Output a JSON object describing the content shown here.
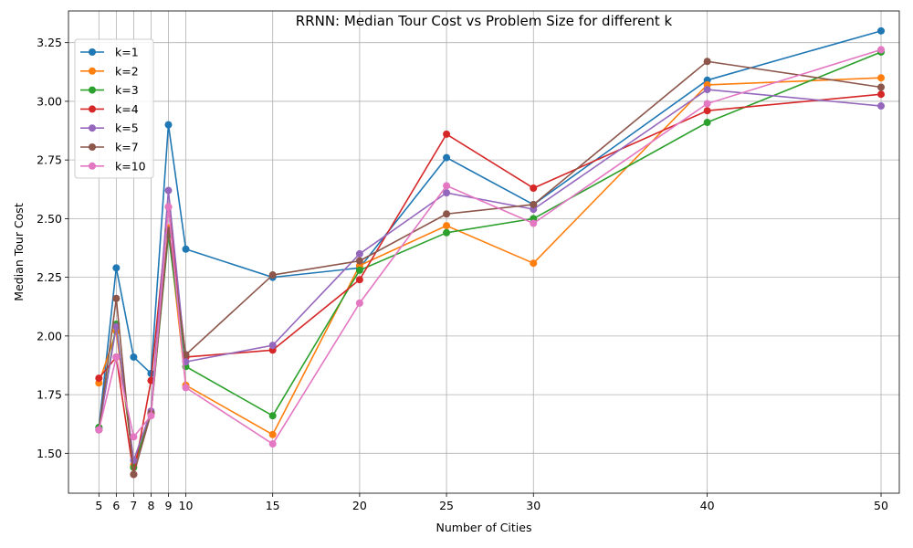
{
  "chart_data": {
    "type": "line",
    "title": "RRNN: Median Tour Cost vs Problem Size for different k",
    "xlabel": "Number of Cities",
    "ylabel": "Median Tour Cost",
    "x": [
      5,
      6,
      7,
      8,
      9,
      10,
      15,
      20,
      25,
      30,
      40,
      50
    ],
    "xticks": [
      5,
      6,
      7,
      8,
      9,
      10,
      15,
      20,
      25,
      30,
      40,
      50
    ],
    "yticks": [
      1.5,
      1.75,
      2.0,
      2.25,
      2.5,
      2.75,
      3.0,
      3.25
    ],
    "ytick_labels": [
      "1.50",
      "1.75",
      "2.00",
      "2.25",
      "2.50",
      "2.75",
      "3.00",
      "3.25"
    ],
    "xlim": [
      3.25,
      51.05
    ],
    "ylim": [
      1.33,
      3.385
    ],
    "grid": true,
    "legend_position": "top-left",
    "series": [
      {
        "name": "k=1",
        "color": "#1f77b4",
        "values": [
          1.61,
          2.29,
          1.91,
          1.84,
          2.9,
          2.37,
          2.25,
          2.29,
          2.76,
          2.56,
          3.09,
          3.3
        ]
      },
      {
        "name": "k=2",
        "color": "#ff7f0e",
        "values": [
          1.8,
          2.02,
          1.45,
          1.67,
          2.46,
          1.79,
          1.58,
          2.3,
          2.47,
          2.31,
          3.07,
          3.1
        ]
      },
      {
        "name": "k=3",
        "color": "#2ca02c",
        "values": [
          1.61,
          2.05,
          1.44,
          1.67,
          2.43,
          1.87,
          1.66,
          2.28,
          2.44,
          2.5,
          2.91,
          3.21
        ]
      },
      {
        "name": "k=4",
        "color": "#d62728",
        "values": [
          1.82,
          1.91,
          1.41,
          1.81,
          2.55,
          1.91,
          1.94,
          2.24,
          2.86,
          2.63,
          2.96,
          3.03
        ]
      },
      {
        "name": "k=5",
        "color": "#9467bd",
        "values": [
          1.6,
          2.04,
          1.47,
          1.68,
          2.62,
          1.89,
          1.96,
          2.35,
          2.61,
          2.54,
          3.05,
          2.98
        ]
      },
      {
        "name": "k=7",
        "color": "#8c564b",
        "values": [
          1.6,
          2.16,
          1.41,
          1.67,
          2.45,
          1.92,
          2.26,
          2.32,
          2.52,
          2.56,
          3.17,
          3.06
        ]
      },
      {
        "name": "k=10",
        "color": "#e377c2",
        "values": [
          1.6,
          1.91,
          1.57,
          1.66,
          2.55,
          1.78,
          1.54,
          2.14,
          2.64,
          2.48,
          2.99,
          3.22
        ]
      }
    ]
  }
}
